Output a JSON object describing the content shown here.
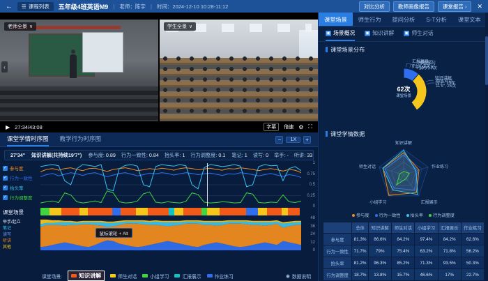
{
  "topbar": {
    "back": "←",
    "menu_label": "课程列表",
    "title": "五年级4班英语M9",
    "teacher": "老师：陈宇",
    "time": "时间：2024-12-10 10:28-11:12",
    "buttons": [
      "对比分析",
      "教师画像报告",
      "课堂报告 ›"
    ],
    "close": "✕"
  },
  "video": {
    "left_label": "老师全景",
    "right_label": "学生全景",
    "dropdown_glyph": "∨",
    "pane_arrow": "‹",
    "play_glyph": "▶",
    "time": "27:34/43:08",
    "subtitle": "字幕",
    "speed": "倍速",
    "settings_glyph": "⚙",
    "fullscreen_glyph": "⛶"
  },
  "timeline": {
    "tabs": [
      {
        "label": "课堂学情时序图",
        "active": true
      },
      {
        "label": "教学行为时序图",
        "active": false
      }
    ],
    "zoom_out": "−",
    "zoom_level": "1X",
    "zoom_in": "+",
    "stats": {
      "time": "27'34\"",
      "scene": "知识讲解(共持续19'7\")",
      "metrics": [
        {
          "label": "参与度",
          "value": "0.89"
        },
        {
          "label": "行为一致性",
          "value": "0.84"
        },
        {
          "label": "抬头率",
          "value": "1"
        },
        {
          "label": "行为调整度",
          "value": "0.1"
        }
      ],
      "behaviors": [
        {
          "label": "笔记",
          "value": "1"
        },
        {
          "label": "读写",
          "value": "0"
        },
        {
          "label": "举手",
          "value": "-"
        },
        {
          "label": "听讲",
          "value": "33"
        },
        {
          "label": "起立",
          "value": "-"
        },
        {
          "label": "其他",
          "value": "-"
        }
      ]
    },
    "check_glyph": "✓",
    "scene_row_label": "课堂场景",
    "behavior_labels": [
      {
        "label": "举手/起立",
        "color": "#dfe8f5"
      },
      {
        "label": "笔记",
        "color": "#38c3f0"
      },
      {
        "label": "读写",
        "color": "#6f9ef7"
      },
      {
        "label": "听讲",
        "color": "#f08c1e"
      },
      {
        "label": "其他",
        "color": "#f7c61c"
      }
    ],
    "tooltip": "鼠标滚轮 + Alt",
    "bottom_legend_label": "课堂场景:",
    "data_note": "数据说明",
    "info_glyph": "◉",
    "line_axis": [
      "1",
      "0.75",
      "0.5",
      "0.25",
      "0"
    ],
    "stacked_axis": [
      "48",
      "36",
      "24",
      "12",
      "0"
    ]
  },
  "right_panel": {
    "tabs": [
      {
        "label": "课堂场景",
        "active": true
      },
      {
        "label": "师生行为",
        "active": false
      },
      {
        "label": "提问分析",
        "active": false
      },
      {
        "label": "S-T分析",
        "active": false
      },
      {
        "label": "课堂文本",
        "active": false
      }
    ],
    "subtabs": [
      {
        "label": "场景概况",
        "active": true
      },
      {
        "label": "知识讲解",
        "active": false
      },
      {
        "label": "师生对话",
        "active": false
      }
    ],
    "distribution_title": "课堂场景分布",
    "donut_center_value": "62次",
    "donut_center_label": "课堂场景",
    "radar_title": "课堂学情数据",
    "table": {
      "headers": [
        "",
        "总体",
        "知识讲解",
        "师生对话",
        "小组学习",
        "汇报展示",
        "作业练习"
      ],
      "rows": [
        [
          "参与度",
          "81.3%",
          "86.6%",
          "84.2%",
          "97.4%",
          "84.2%",
          "62.6%"
        ],
        [
          "行为一致性",
          "71.7%",
          "79%",
          "75.4%",
          "63.2%",
          "71.8%",
          "56.2%"
        ],
        [
          "抬头率",
          "81.2%",
          "96.3%",
          "85.2%",
          "71.3%",
          "93.5%",
          "50.3%"
        ],
        [
          "行为调整度",
          "18.7%",
          "13.8%",
          "15.7%",
          "46.6%",
          "17%",
          "22.7%"
        ]
      ]
    }
  },
  "chart_data": [
    {
      "id": "scene_donut",
      "type": "pie",
      "title": "课堂场景分布",
      "center": [
        "62次",
        "课堂场景"
      ],
      "slices": [
        {
          "name": "知识讲解",
          "value": 23,
          "duration": "19'7\"",
          "count_label": "23次",
          "color": "#f25a1a"
        },
        {
          "name": "师生对话",
          "value": 25,
          "duration": "11'9\"",
          "count_label": "25次",
          "color": "#f7c61c"
        },
        {
          "name": "小组学习",
          "value": 5,
          "duration": "3'15\"",
          "count_label": "5次",
          "color": "#3fd63f"
        },
        {
          "name": "汇报展示",
          "value": 2,
          "duration": "6'23\"",
          "count_label": "2次",
          "color": "#13c2c2"
        },
        {
          "name": "作业练习",
          "value": 7,
          "duration": "10'9\"",
          "count_label": "7次",
          "color": "#2f6fed"
        }
      ]
    },
    {
      "id": "learning_timeseries",
      "type": "line",
      "ylim": [
        0,
        1
      ],
      "series": [
        {
          "name": "参与度",
          "color": "#f08c1e",
          "values": [
            0.82,
            0.88,
            0.9,
            0.86,
            0.9,
            0.92,
            0.88,
            0.85,
            0.9,
            0.91,
            0.87,
            0.83,
            0.88,
            0.9,
            0.92,
            0.89,
            0.85,
            0.87,
            0.9,
            0.88,
            0.91,
            0.89,
            0.86,
            0.9,
            0.92,
            0.9,
            0.87,
            0.89,
            0.91,
            0.88,
            0.86,
            0.9,
            0.89,
            0.92,
            0.9,
            0.88,
            0.85,
            0.88,
            0.9,
            0.87,
            0.84,
            0.88,
            0.86,
            0.8
          ]
        },
        {
          "name": "行为一致性",
          "color": "#2f6fed",
          "values": [
            0.7,
            0.75,
            0.78,
            0.72,
            0.76,
            0.8,
            0.77,
            0.73,
            0.78,
            0.8,
            0.75,
            0.7,
            0.74,
            0.78,
            0.8,
            0.76,
            0.72,
            0.75,
            0.79,
            0.77,
            0.8,
            0.78,
            0.74,
            0.77,
            0.8,
            0.78,
            0.75,
            0.77,
            0.79,
            0.76,
            0.73,
            0.77,
            0.76,
            0.8,
            0.78,
            0.75,
            0.72,
            0.75,
            0.78,
            0.74,
            0.71,
            0.75,
            0.73,
            0.68
          ]
        },
        {
          "name": "抬头率",
          "color": "#38c3f0",
          "values": [
            0.95,
            0.98,
            1,
            0.97,
            0.6,
            0.5,
            0.9,
            1,
            0.98,
            0.95,
            1,
            0.4,
            0.35,
            0.9,
            0.98,
            1,
            0.96,
            0.5,
            0.45,
            0.95,
            1,
            0.98,
            0.96,
            1,
            0.97,
            0.5,
            0.4,
            0.92,
            1,
            0.98,
            0.95,
            0.97,
            1,
            0.96,
            0.45,
            0.5,
            0.95,
            1,
            0.97,
            0.98,
            0.6,
            0.9,
            0.95,
            0.85
          ]
        },
        {
          "name": "行为调整度",
          "color": "#3fd63f",
          "values": [
            0.05,
            0.08,
            0.1,
            0.06,
            0.3,
            0.25,
            0.08,
            0.05,
            0.07,
            0.1,
            0.06,
            0.35,
            0.3,
            0.08,
            0.05,
            0.06,
            0.1,
            0.28,
            0.32,
            0.07,
            0.05,
            0.08,
            0.06,
            0.05,
            0.09,
            0.3,
            0.26,
            0.07,
            0.05,
            0.06,
            0.08,
            0.07,
            0.05,
            0.06,
            0.3,
            0.27,
            0.06,
            0.05,
            0.07,
            0.06,
            0.25,
            0.08,
            0.06,
            0.1
          ]
        }
      ]
    },
    {
      "id": "scene_strip",
      "type": "heatmap",
      "segments": [
        {
          "scene": "小组学习",
          "w": 3
        },
        {
          "scene": "师生对话",
          "w": 4
        },
        {
          "scene": "知识讲解",
          "w": 6
        },
        {
          "scene": "师生对话",
          "w": 3
        },
        {
          "scene": "知识讲解",
          "w": 8
        },
        {
          "scene": "作业练习",
          "w": 3
        },
        {
          "scene": "知识讲解",
          "w": 5
        },
        {
          "scene": "师生对话",
          "w": 4
        },
        {
          "scene": "知识讲解",
          "w": 7
        },
        {
          "scene": "汇报展示",
          "w": 2
        },
        {
          "scene": "师生对话",
          "w": 3
        },
        {
          "scene": "知识讲解",
          "w": 6
        },
        {
          "scene": "小组学习",
          "w": 2
        },
        {
          "scene": "师生对话",
          "w": 4
        },
        {
          "scene": "知识讲解",
          "w": 9
        },
        {
          "scene": "作业练习",
          "w": 4
        },
        {
          "scene": "师生对话",
          "w": 3
        },
        {
          "scene": "知识讲解",
          "w": 5
        },
        {
          "scene": "师生对话",
          "w": 2
        },
        {
          "scene": "知识讲解",
          "w": 4
        }
      ]
    },
    {
      "id": "behavior_stacked",
      "type": "area",
      "ylim": [
        0,
        48
      ],
      "series": [
        {
          "name": "读写",
          "color": "#2f6fed",
          "values": [
            5,
            6,
            8,
            10,
            12,
            10,
            8,
            6,
            5,
            8,
            12,
            15,
            14,
            10,
            8,
            6,
            5,
            6,
            8,
            10,
            12,
            14,
            12,
            10,
            8,
            6,
            5,
            8,
            10,
            12,
            10,
            8,
            6,
            5,
            6,
            8,
            10,
            12,
            10,
            8,
            14,
            12,
            10,
            8
          ]
        },
        {
          "name": "听讲",
          "color": "#f08c1e",
          "values": [
            30,
            32,
            30,
            28,
            25,
            28,
            30,
            33,
            34,
            30,
            25,
            20,
            22,
            28,
            32,
            34,
            35,
            33,
            30,
            28,
            25,
            22,
            25,
            28,
            32,
            34,
            35,
            30,
            28,
            25,
            28,
            32,
            34,
            35,
            33,
            30,
            28,
            25,
            28,
            32,
            20,
            24,
            28,
            30
          ]
        },
        {
          "name": "笔记",
          "color": "#38c3f0",
          "values": [
            4,
            3,
            3,
            4,
            5,
            4,
            3,
            3,
            3,
            4,
            5,
            6,
            5,
            4,
            3,
            3,
            3,
            4,
            4,
            5,
            5,
            6,
            5,
            4,
            3,
            3,
            3,
            4,
            4,
            5,
            4,
            3,
            3,
            3,
            4,
            4,
            4,
            5,
            4,
            3,
            6,
            5,
            4,
            4
          ]
        },
        {
          "name": "其他",
          "color": "#f7c61c",
          "values": [
            7,
            5,
            4,
            3,
            2,
            2,
            2,
            2,
            2,
            2,
            2,
            2,
            2,
            2,
            2,
            2,
            2,
            2,
            2,
            2,
            2,
            2,
            2,
            2,
            2,
            2,
            2,
            2,
            2,
            2,
            2,
            2,
            2,
            2,
            2,
            2,
            2,
            2,
            2,
            2,
            2,
            2,
            2,
            2
          ]
        }
      ]
    },
    {
      "id": "learning_radar",
      "type": "radar",
      "axes": [
        "知识讲解",
        "作业练习",
        "汇报展示",
        "小组学习",
        "师生对话"
      ],
      "max": 100,
      "series": [
        {
          "name": "参与度",
          "color": "#f08c1e",
          "values": [
            86.6,
            62.6,
            84.2,
            97.4,
            84.2
          ]
        },
        {
          "name": "行为一致性",
          "color": "#2f6fed",
          "values": [
            79,
            56.2,
            71.8,
            63.2,
            75.4
          ]
        },
        {
          "name": "抬头率",
          "color": "#38c3f0",
          "values": [
            96.3,
            50.3,
            93.5,
            71.3,
            85.2
          ]
        },
        {
          "name": "行为调整度",
          "color": "#3fd63f",
          "values": [
            13.8,
            22.7,
            17,
            46.6,
            15.7
          ]
        }
      ]
    }
  ]
}
